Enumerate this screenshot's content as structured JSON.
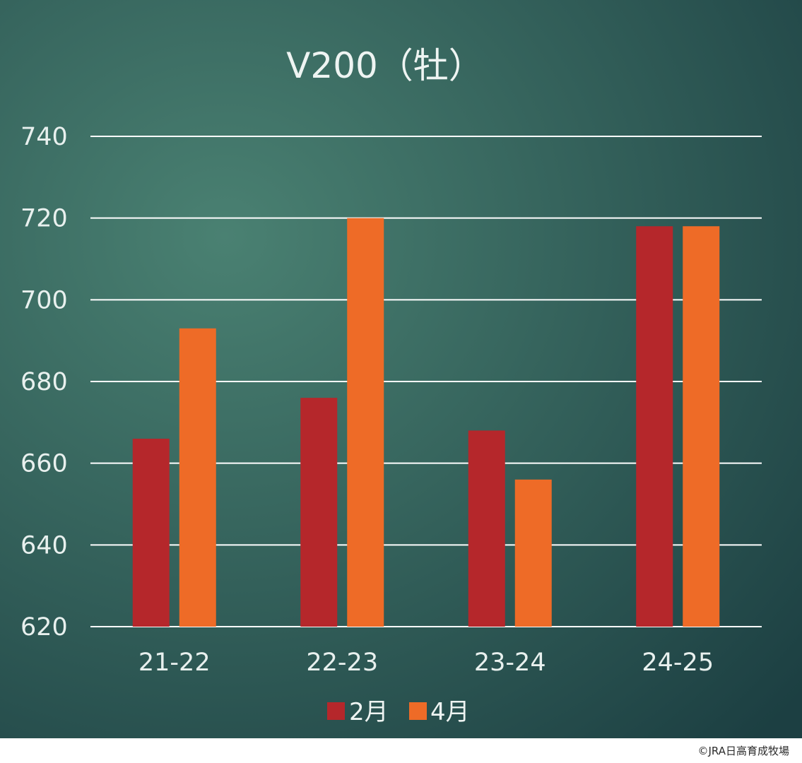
{
  "chart_data": {
    "type": "bar",
    "title": "V200（牡）",
    "categories": [
      "21-22",
      "22-23",
      "23-24",
      "24-25"
    ],
    "series": [
      {
        "name": "2月",
        "values": [
          666,
          676,
          668,
          718
        ]
      },
      {
        "name": "4月",
        "values": [
          693,
          720,
          656,
          718
        ]
      }
    ],
    "ylim": [
      620,
      740
    ],
    "yticks": [
      620,
      640,
      660,
      680,
      700,
      720,
      740
    ],
    "grid": true,
    "legend": "bottom-center",
    "colors": {
      "series": [
        "#b5272b",
        "#ee6b27"
      ],
      "background_light": "#4a8172",
      "background_dark": "#1c3f42",
      "gridline": "#ffffff"
    }
  },
  "credit": "©JRA日高育成牧場"
}
